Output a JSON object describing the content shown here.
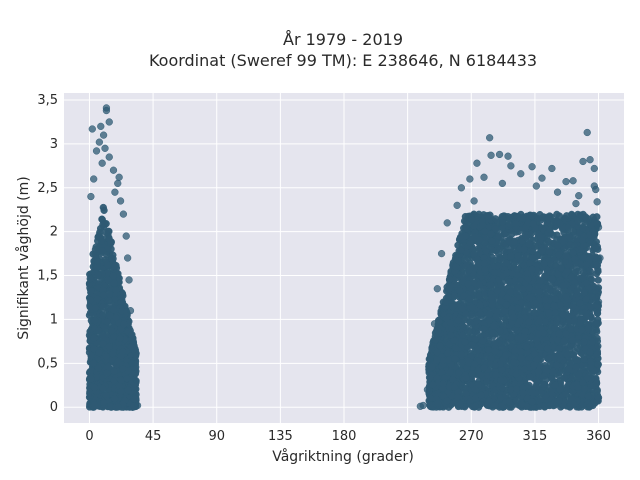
{
  "chart_data": {
    "type": "scatter",
    "title_line1": "År 1979 - 2019",
    "title_line2": "Koordinat (Sweref 99 TM): E 238646, N 6184433",
    "xlabel": "Vågriktning (grader)",
    "ylabel": "Signifikant våghöjd (m)",
    "xlim": [
      -18,
      378
    ],
    "ylim": [
      -0.18,
      3.58
    ],
    "x_ticks": [
      0,
      45,
      90,
      135,
      180,
      225,
      270,
      315,
      360
    ],
    "x_tick_labels": [
      "0",
      "45",
      "90",
      "135",
      "180",
      "225",
      "270",
      "315",
      "360"
    ],
    "y_ticks": [
      0,
      0.5,
      1,
      1.5,
      2,
      2.5,
      3,
      3.5
    ],
    "y_tick_labels": [
      "0",
      "0,5",
      "1",
      "1,5",
      "2",
      "2,5",
      "3",
      "3,5"
    ],
    "grid": true,
    "colors": {
      "background": "#e5e5ee",
      "grid": "#ffffff",
      "marker": "#2e5a73"
    },
    "dense_regions": [
      {
        "x_range": [
          0,
          33
        ],
        "y_range": [
          0,
          2.3
        ],
        "description_peak_direction": 10
      },
      {
        "x_range": [
          240,
          360
        ],
        "y_range": [
          0,
          2.2
        ],
        "description_peak_direction": 300
      }
    ],
    "points": [
      {
        "x": 12,
        "y": 3.41
      },
      {
        "x": 12,
        "y": 3.38
      },
      {
        "x": 14,
        "y": 3.25
      },
      {
        "x": 2,
        "y": 3.17
      },
      {
        "x": 8,
        "y": 3.2
      },
      {
        "x": 10,
        "y": 3.1
      },
      {
        "x": 7,
        "y": 3.02
      },
      {
        "x": 11,
        "y": 2.95
      },
      {
        "x": 5,
        "y": 2.92
      },
      {
        "x": 14,
        "y": 2.85
      },
      {
        "x": 9,
        "y": 2.78
      },
      {
        "x": 17,
        "y": 2.7
      },
      {
        "x": 20,
        "y": 2.55
      },
      {
        "x": 21,
        "y": 2.62
      },
      {
        "x": 3,
        "y": 2.6
      },
      {
        "x": 18,
        "y": 2.45
      },
      {
        "x": 22,
        "y": 2.35
      },
      {
        "x": 1,
        "y": 2.4
      },
      {
        "x": 24,
        "y": 2.2
      },
      {
        "x": 26,
        "y": 1.95
      },
      {
        "x": 27,
        "y": 1.7
      },
      {
        "x": 28,
        "y": 1.45
      },
      {
        "x": 29,
        "y": 1.1
      },
      {
        "x": 31,
        "y": 0.75
      },
      {
        "x": 33,
        "y": 0.3
      },
      {
        "x": 34,
        "y": 0.02
      },
      {
        "x": 30,
        "y": 0.5
      },
      {
        "x": 283,
        "y": 3.07
      },
      {
        "x": 352,
        "y": 3.13
      },
      {
        "x": 284,
        "y": 2.87
      },
      {
        "x": 290,
        "y": 2.88
      },
      {
        "x": 296,
        "y": 2.86
      },
      {
        "x": 274,
        "y": 2.78
      },
      {
        "x": 298,
        "y": 2.75
      },
      {
        "x": 313,
        "y": 2.74
      },
      {
        "x": 327,
        "y": 2.72
      },
      {
        "x": 349,
        "y": 2.8
      },
      {
        "x": 354,
        "y": 2.82
      },
      {
        "x": 357,
        "y": 2.72
      },
      {
        "x": 269,
        "y": 2.6
      },
      {
        "x": 279,
        "y": 2.62
      },
      {
        "x": 305,
        "y": 2.66
      },
      {
        "x": 320,
        "y": 2.61
      },
      {
        "x": 337,
        "y": 2.57
      },
      {
        "x": 342,
        "y": 2.58
      },
      {
        "x": 357,
        "y": 2.52
      },
      {
        "x": 358,
        "y": 2.48
      },
      {
        "x": 263,
        "y": 2.5
      },
      {
        "x": 292,
        "y": 2.55
      },
      {
        "x": 316,
        "y": 2.52
      },
      {
        "x": 331,
        "y": 2.45
      },
      {
        "x": 346,
        "y": 2.41
      },
      {
        "x": 359,
        "y": 2.34
      },
      {
        "x": 260,
        "y": 2.3
      },
      {
        "x": 272,
        "y": 2.35
      },
      {
        "x": 344,
        "y": 2.32
      },
      {
        "x": 253,
        "y": 2.1
      },
      {
        "x": 249,
        "y": 1.75
      },
      {
        "x": 246,
        "y": 1.35
      },
      {
        "x": 244,
        "y": 0.95
      },
      {
        "x": 241,
        "y": 0.55
      },
      {
        "x": 239,
        "y": 0.2
      },
      {
        "x": 236,
        "y": 0.02
      },
      {
        "x": 234,
        "y": 0.01
      },
      {
        "x": 360,
        "y": 2.05
      },
      {
        "x": 361,
        "y": 1.7
      },
      {
        "x": 360,
        "y": 1.2
      }
    ]
  }
}
